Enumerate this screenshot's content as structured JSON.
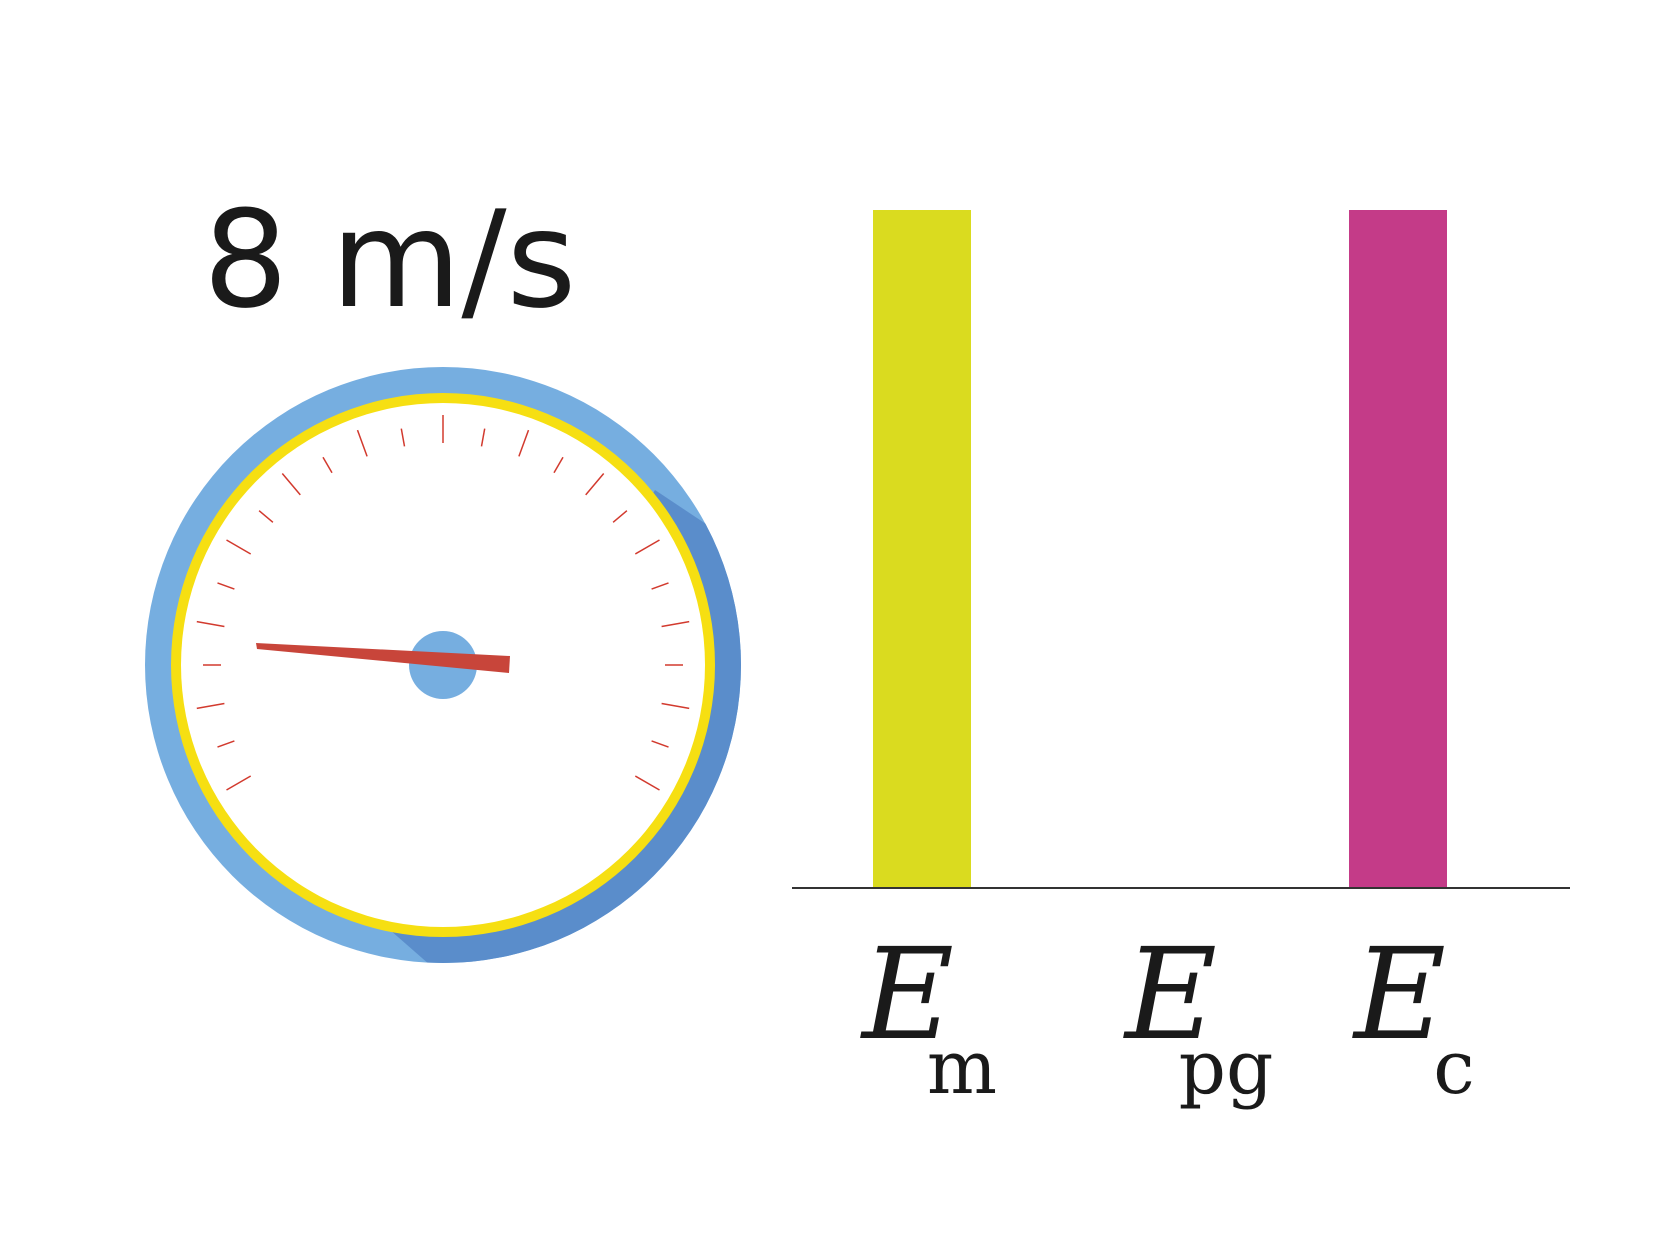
{
  "speed_readout": "8 m/s",
  "gauge": {
    "outer_color": "#76aee0",
    "outer_shadow_color": "#5a8dcb",
    "rim_color": "#f6df12",
    "face_color": "#ffffff",
    "tick_color": "#d23a2e",
    "needle_color": "#c8453a",
    "hub_color": "#76aee0"
  },
  "chart_data": {
    "type": "bar",
    "categories": [
      {
        "main": "E",
        "sub": "m"
      },
      {
        "main": "E",
        "sub": "pg"
      },
      {
        "main": "E",
        "sub": "c"
      }
    ],
    "values": [
      1.0,
      0.0,
      1.0
    ],
    "colors": [
      "#dadb1f",
      "#ffffff",
      "#c43b88"
    ],
    "ylim": [
      0,
      1
    ],
    "axis_color": "#333333",
    "title": "",
    "xlabel": "",
    "ylabel": ""
  }
}
